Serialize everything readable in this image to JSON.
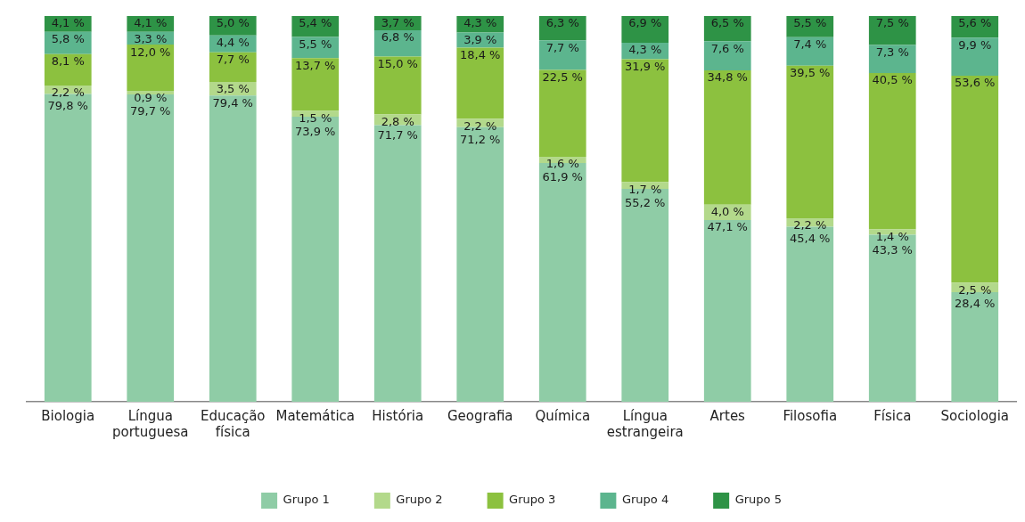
{
  "chart_data": {
    "type": "bar",
    "stacked": true,
    "legend": "bottom",
    "grid": false,
    "tick_labels": "x",
    "categories": [
      "Biologia",
      "Língua portuguesa",
      "Educação física",
      "Matemática",
      "História",
      "Geografia",
      "Química",
      "Língua estrangeira",
      "Artes",
      "Filosofia",
      "Física",
      "Sociologia"
    ],
    "series": [
      {
        "name": "Grupo 1",
        "color": "#8fcca6",
        "values": [
          79.8,
          79.7,
          79.4,
          73.9,
          71.7,
          71.2,
          61.9,
          55.2,
          47.1,
          45.4,
          43.3,
          28.4
        ],
        "value_labels": [
          "79,8 %",
          "79,7 %",
          "79,4 %",
          "73,9 %",
          "71,7 %",
          "71,2 %",
          "61,9 %",
          "55,2 %",
          "47,1 %",
          "45,4 %",
          "43,3 %",
          "28,4 %"
        ]
      },
      {
        "name": "Grupo 2",
        "color": "#b3d98b",
        "values": [
          2.2,
          0.9,
          3.5,
          1.5,
          2.8,
          2.2,
          1.6,
          1.7,
          4.0,
          2.2,
          1.4,
          2.5
        ],
        "value_labels": [
          "2,2 %",
          "0,9 %",
          "3,5 %",
          "1,5 %",
          "2,8 %",
          "2,2 %",
          "1,6 %",
          "1,7 %",
          "4,0 %",
          "2,2 %",
          "1,4 %",
          "2,5 %"
        ]
      },
      {
        "name": "Grupo 3",
        "color": "#8cc13f",
        "values": [
          8.1,
          12.0,
          7.7,
          13.7,
          15.0,
          18.4,
          22.5,
          31.9,
          34.8,
          39.5,
          40.5,
          53.6
        ],
        "value_labels": [
          "8,1 %",
          "12,0 %",
          "7,7 %",
          "13,7 %",
          "15,0 %",
          "18,4 %",
          "22,5 %",
          "31,9 %",
          "34,8 %",
          "39,5 %",
          "40,5 %",
          "53,6 %"
        ]
      },
      {
        "name": "Grupo 4",
        "color": "#5cb58e",
        "values": [
          5.8,
          3.3,
          4.4,
          5.5,
          6.8,
          3.9,
          7.7,
          4.3,
          7.6,
          7.4,
          7.3,
          9.9
        ],
        "value_labels": [
          "5,8 %",
          "3,3 %",
          "4,4 %",
          "5,5 %",
          "6,8 %",
          "3,9 %",
          "7,7 %",
          "4,3 %",
          "7,6 %",
          "7,4 %",
          "7,3 %",
          "9,9 %"
        ]
      },
      {
        "name": "Grupo 5",
        "color": "#2e9346",
        "values": [
          4.1,
          4.1,
          5.0,
          5.4,
          3.7,
          4.3,
          6.3,
          6.9,
          6.5,
          5.5,
          7.5,
          5.6
        ],
        "value_labels": [
          "4,1 %",
          "4,1 %",
          "5,0 %",
          "5,4 %",
          "3,7 %",
          "4,3 %",
          "6,3 %",
          "6,9 %",
          "6,5 %",
          "5,5 %",
          "7,5 %",
          "5,6 %"
        ]
      }
    ]
  }
}
